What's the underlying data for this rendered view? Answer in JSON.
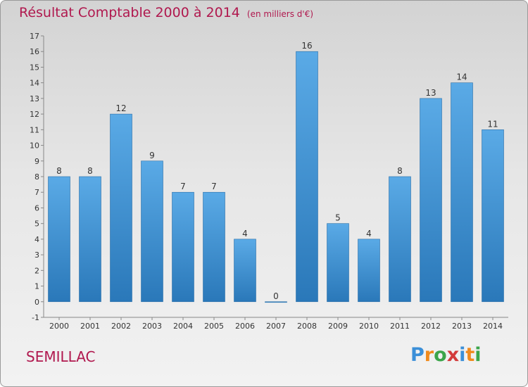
{
  "header": {
    "title": "Résultat Comptable 2000 à 2014",
    "unit_note": "(en milliers d'€)"
  },
  "footer": {
    "commune": "SEMILLAC",
    "logo_letters": [
      "P",
      "r",
      "o",
      "x",
      "i",
      "t",
      "i"
    ]
  },
  "colors": {
    "title": "#b0184e",
    "bar_top": "#5aaae6",
    "bar_bottom": "#2a78b9"
  },
  "chart_data": {
    "type": "bar",
    "title": "Résultat Comptable 2000 à 2014",
    "subtitle": "(en milliers d'€)",
    "xlabel": "",
    "ylabel": "",
    "categories": [
      "2000",
      "2001",
      "2002",
      "2003",
      "2004",
      "2005",
      "2006",
      "2007",
      "2008",
      "2009",
      "2010",
      "2011",
      "2012",
      "2013",
      "2014"
    ],
    "values": [
      8,
      8,
      12,
      9,
      7,
      7,
      4,
      0,
      16,
      5,
      4,
      8,
      13,
      14,
      11
    ],
    "ylim": [
      -1,
      17
    ],
    "yticks": [
      -1,
      0,
      1,
      2,
      3,
      4,
      5,
      6,
      7,
      8,
      9,
      10,
      11,
      12,
      13,
      14,
      15,
      16,
      17
    ],
    "grid": false,
    "legend": "none"
  }
}
